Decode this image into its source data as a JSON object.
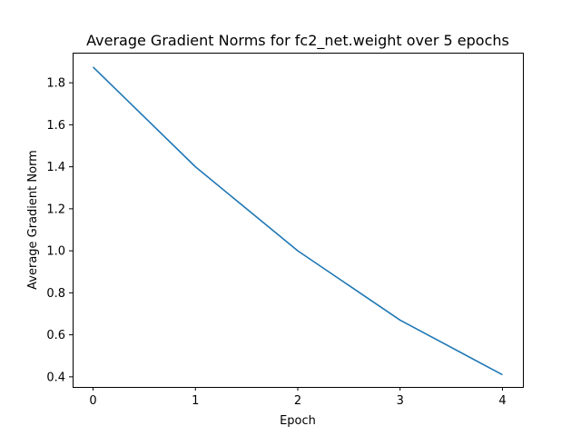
{
  "chart_data": {
    "type": "line",
    "title": "Average Gradient Norms for fc2_net.weight over 5 epochs",
    "xlabel": "Epoch",
    "ylabel": "Average Gradient Norm",
    "x": [
      0,
      1,
      2,
      3,
      4
    ],
    "series": [
      {
        "values": [
          1.875,
          1.4,
          1.0,
          0.67,
          0.41
        ],
        "color": "#1f77b4"
      }
    ],
    "xlim": [
      -0.2,
      4.2
    ],
    "ylim": [
      0.3518,
      1.9433
    ],
    "x_ticks": [
      0,
      1,
      2,
      3,
      4
    ],
    "x_tick_labels": [
      "0",
      "1",
      "2",
      "3",
      "4"
    ],
    "y_ticks": [
      0.4,
      0.6,
      0.8,
      1.0,
      1.2,
      1.4,
      1.6,
      1.8
    ],
    "y_tick_labels": [
      "0.4",
      "0.6",
      "0.8",
      "1.0",
      "1.2",
      "1.4",
      "1.6",
      "1.8"
    ],
    "grid": false,
    "legend": "none"
  }
}
